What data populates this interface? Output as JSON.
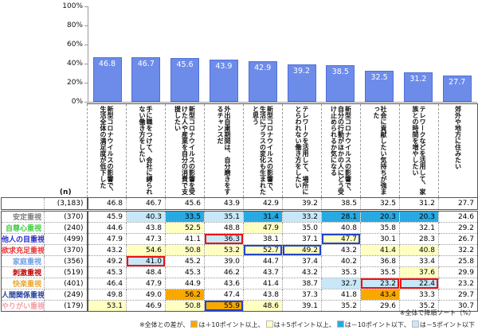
{
  "chart_data": {
    "type": "bar",
    "title": "",
    "xlabel": "",
    "ylabel": "",
    "ylim": [
      0,
      100
    ],
    "yticks": [
      "100%",
      "80%",
      "60%",
      "40%",
      "20%",
      "0%"
    ],
    "grid": false,
    "legend_position": "none",
    "categories": [
      "新型コロナウイルスの影響で、生活全体の満足度が低下した",
      "手に職をつけて、会社に縛られない働き方をしたい",
      "新型コロナウイルスの影響を受けた人や産業を自分の消費で支援したい",
      "外出自粛期間は、自分磨きをするチャンスだ",
      "新型コロナウイルスの影響で、生活にプラスの変化も生まれたと思う",
      "テレワークを活用して、場所にとらわれない働き方をしたい",
      "新型コロナウイルスの影響で、自分の行動がほかの人にどう受け止められるか気になる",
      "社会に貢献したい気持ちが強まった",
      "テレワークなどを活用して、家族との時間を増やしたい",
      "郊外や地方に住みたい"
    ],
    "values": [
      46.8,
      46.7,
      45.6,
      43.9,
      42.9,
      39.2,
      38.5,
      32.5,
      31.2,
      27.7
    ]
  },
  "table": {
    "n_label": "(n)",
    "rows": [
      {
        "label": "",
        "color": "#333333",
        "n": "(3,183)",
        "values": [
          "46.8",
          "46.7",
          "45.6",
          "43.9",
          "42.9",
          "39.2",
          "38.5",
          "32.5",
          "31.2",
          "27.7"
        ],
        "hl": [
          "",
          "",
          "",
          "",
          "",
          "",
          "",
          "",
          "",
          ""
        ],
        "box": [
          "",
          "",
          "",
          "",
          "",
          "",
          "",
          "",
          "",
          ""
        ]
      },
      {
        "label": "安定重視",
        "color": "#7f7f7f",
        "n": "(370)",
        "values": [
          "45.9",
          "40.3",
          "33.5",
          "35.1",
          "31.4",
          "33.2",
          "28.1",
          "20.3",
          "20.3",
          "24.6"
        ],
        "hl": [
          "",
          "minus5",
          "minus10",
          "minus5",
          "minus10",
          "minus5",
          "minus10",
          "minus10",
          "minus10",
          ""
        ],
        "box": [
          "",
          "",
          "",
          "",
          "",
          "",
          "",
          "",
          "",
          ""
        ]
      },
      {
        "label": "自尊心重視",
        "color": "#44cc44",
        "n": "(240)",
        "values": [
          "44.6",
          "43.8",
          "52.5",
          "48.8",
          "47.9",
          "35.0",
          "40.8",
          "35.8",
          "32.1",
          "29.2"
        ],
        "hl": [
          "",
          "",
          "plus5",
          "",
          "plus5",
          "",
          "",
          "",
          "",
          ""
        ],
        "box": [
          "",
          "",
          "",
          "",
          "",
          "",
          "",
          "",
          "",
          ""
        ]
      },
      {
        "label": "他人の目重視",
        "color": "#2929c9",
        "n": "(499)",
        "values": [
          "47.9",
          "47.3",
          "41.1",
          "36.3",
          "38.1",
          "37.1",
          "47.7",
          "30.1",
          "28.3",
          "26.7"
        ],
        "hl": [
          "",
          "",
          "",
          "minus5",
          "",
          "",
          "plus5",
          "",
          "",
          ""
        ],
        "box": [
          "",
          "",
          "",
          "red",
          "",
          "",
          "blue",
          "",
          "",
          ""
        ]
      },
      {
        "label": "欲求充足重視",
        "color": "#ee3333",
        "n": "(370)",
        "values": [
          "43.2",
          "54.6",
          "50.8",
          "53.2",
          "52.7",
          "49.2",
          "43.2",
          "41.4",
          "40.8",
          "32.2"
        ],
        "hl": [
          "",
          "plus5",
          "plus5",
          "plus5",
          "plus5",
          "plus5",
          "",
          "plus5",
          "plus5",
          ""
        ],
        "box": [
          "",
          "",
          "",
          "",
          "blue",
          "blue",
          "",
          "",
          "",
          ""
        ]
      },
      {
        "label": "家庭重視",
        "color": "#6f9fe8",
        "n": "(356)",
        "values": [
          "49.2",
          "41.0",
          "45.2",
          "39.0",
          "44.7",
          "37.4",
          "40.2",
          "36.8",
          "33.4",
          "25.8"
        ],
        "hl": [
          "",
          "minus5",
          "",
          "",
          "",
          "",
          "",
          "",
          "",
          ""
        ],
        "box": [
          "",
          "red",
          "",
          "",
          "",
          "",
          "",
          "",
          "",
          ""
        ]
      },
      {
        "label": "刺激重視",
        "color": "#c00000",
        "n": "(519)",
        "values": [
          "45.3",
          "48.4",
          "45.3",
          "46.2",
          "43.7",
          "43.2",
          "35.3",
          "35.5",
          "37.6",
          "29.9"
        ],
        "hl": [
          "",
          "",
          "",
          "",
          "",
          "",
          "",
          "",
          "plus5",
          ""
        ],
        "box": [
          "",
          "",
          "",
          "",
          "",
          "",
          "",
          "",
          "",
          ""
        ]
      },
      {
        "label": "快楽重視",
        "color": "#e8a838",
        "n": "(401)",
        "values": [
          "46.4",
          "47.9",
          "44.9",
          "43.6",
          "41.4",
          "38.7",
          "32.7",
          "23.2",
          "22.4",
          "23.2"
        ],
        "hl": [
          "",
          "",
          "",
          "",
          "",
          "",
          "minus5",
          "minus5",
          "minus5",
          ""
        ],
        "box": [
          "",
          "",
          "",
          "",
          "",
          "",
          "",
          "red",
          "red",
          ""
        ]
      },
      {
        "label": "人間関係重視",
        "color": "#1f3d99",
        "n": "(249)",
        "values": [
          "49.8",
          "49.0",
          "56.2",
          "47.4",
          "43.8",
          "37.3",
          "41.8",
          "43.4",
          "33.3",
          "29.7"
        ],
        "hl": [
          "",
          "",
          "plus10",
          "",
          "",
          "",
          "",
          "plus10",
          "",
          ""
        ],
        "box": [
          "",
          "",
          "",
          "",
          "",
          "",
          "",
          "",
          "",
          ""
        ]
      },
      {
        "label": "やりがい重視",
        "color": "#f2a0a8",
        "n": "(179)",
        "values": [
          "53.1",
          "46.9",
          "50.8",
          "55.9",
          "48.6",
          "39.1",
          "35.2",
          "29.6",
          "35.2",
          "30.7"
        ],
        "hl": [
          "plus5",
          "",
          "plus5",
          "plus10",
          "plus5",
          "",
          "",
          "",
          "",
          ""
        ],
        "box": [
          "",
          "",
          "",
          "blue",
          "",
          "",
          "",
          "",
          "",
          ""
        ]
      }
    ]
  },
  "notes": {
    "sort_note": "※全体で降順ソート（%）"
  },
  "legend": {
    "prefix": "※全体との差が、",
    "items": [
      {
        "swatch": "plus10",
        "text": "は＋10ポイント以上、"
      },
      {
        "swatch": "plus5",
        "text": "は＋5ポイント以上、"
      },
      {
        "swatch": "minus10",
        "text": "は－10ポイント以下、"
      },
      {
        "swatch": "minus5",
        "text": "は－5ポイント以下"
      }
    ]
  },
  "colors": {
    "bar_fill": "#6d8cea",
    "bar_border": "#4e6fd6",
    "plus10": "#f9a800",
    "plus5": "#ffffc1",
    "minus10": "#29a9e1",
    "minus5": "#c8e7f8",
    "box_red": "#ee1111",
    "box_blue": "#2244cc"
  }
}
